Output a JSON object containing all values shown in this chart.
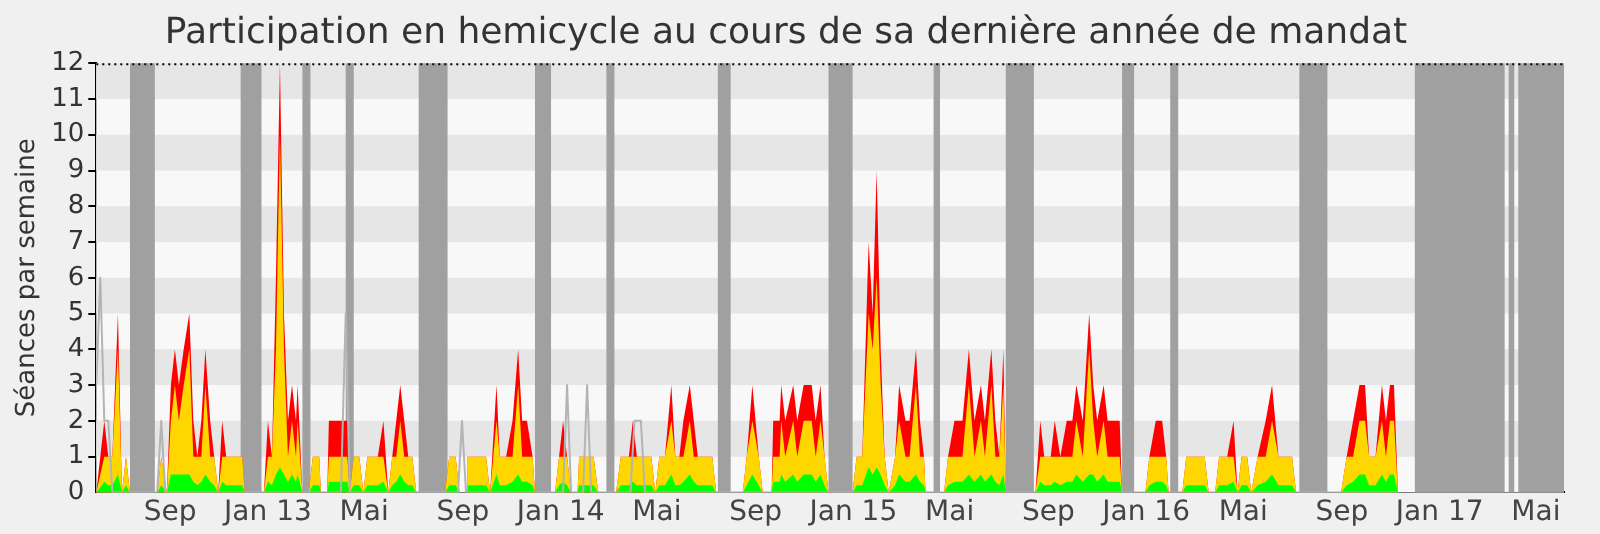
{
  "chart_data": {
    "type": "area",
    "title": "Participation en hemicycle au cours de sa dernière année de mandat",
    "ylabel": "Séances par semaine",
    "xlim": [
      "2012-06-15",
      "2017-06-19"
    ],
    "xticks": [
      {
        "value": "2012-09-15",
        "label": "Sep"
      },
      {
        "value": "2013-01-15",
        "label": "Jan 13"
      },
      {
        "value": "2013-05-15",
        "label": "Mai"
      },
      {
        "value": "2013-09-15",
        "label": "Sep"
      },
      {
        "value": "2014-01-15",
        "label": "Jan 14"
      },
      {
        "value": "2014-05-15",
        "label": "Mai"
      },
      {
        "value": "2014-09-15",
        "label": "Sep"
      },
      {
        "value": "2015-01-15",
        "label": "Jan 15"
      },
      {
        "value": "2015-05-15",
        "label": "Mai"
      },
      {
        "value": "2015-09-15",
        "label": "Sep"
      },
      {
        "value": "2016-01-15",
        "label": "Jan 16"
      },
      {
        "value": "2016-05-15",
        "label": "Mai"
      },
      {
        "value": "2016-09-15",
        "label": "Sep"
      },
      {
        "value": "2017-01-15",
        "label": "Jan 17"
      },
      {
        "value": "2017-05-15",
        "label": "Mai"
      }
    ],
    "ylim": [
      0,
      12
    ],
    "yticks": [
      0,
      1,
      2,
      3,
      4,
      5,
      6,
      7,
      8,
      9,
      10,
      11,
      12
    ],
    "legend": false,
    "marker": "none",
    "x": [
      "2012-06-15",
      "2012-06-25",
      "2012-06-30",
      "2012-07-05",
      "2012-07-12",
      "2012-07-17",
      "2012-07-22",
      "2012-07-27",
      "2012-08-30",
      "2012-09-04",
      "2012-09-11",
      "2012-09-16",
      "2012-09-21",
      "2012-09-26",
      "2012-10-02",
      "2012-10-09",
      "2012-10-14",
      "2012-10-19",
      "2012-10-24",
      "2012-10-29",
      "2012-11-04",
      "2012-11-09",
      "2012-11-14",
      "2012-11-19",
      "2012-11-24",
      "2012-11-29",
      "2012-12-07",
      "2012-12-14",
      "2012-12-17",
      "2013-01-10",
      "2013-01-15",
      "2013-01-20",
      "2013-01-25",
      "2013-01-30",
      "2013-02-04",
      "2013-02-09",
      "2013-02-14",
      "2013-02-19",
      "2013-02-21",
      "2013-02-27",
      "2013-03-07",
      "2013-03-12",
      "2013-03-20",
      "2013-03-22",
      "2013-03-30",
      "2013-04-01",
      "2013-04-24",
      "2013-04-27",
      "2013-05-02",
      "2013-05-09",
      "2013-05-14",
      "2013-05-19",
      "2013-05-27",
      "2013-06-01",
      "2013-06-08",
      "2013-06-14",
      "2013-06-19",
      "2013-06-24",
      "2013-06-29",
      "2013-07-04",
      "2013-07-09",
      "2013-07-14",
      "2013-07-19",
      "2013-08-24",
      "2013-08-29",
      "2013-09-06",
      "2013-09-11",
      "2013-09-19",
      "2013-09-21",
      "2013-10-14",
      "2013-10-19",
      "2013-10-27",
      "2013-10-31",
      "2013-11-08",
      "2013-11-16",
      "2013-11-23",
      "2013-11-28",
      "2013-12-04",
      "2013-12-11",
      "2013-12-14",
      "2014-01-08",
      "2014-01-13",
      "2014-01-18",
      "2014-01-23",
      "2014-01-28",
      "2014-02-05",
      "2014-02-07",
      "2014-02-25",
      "2014-03-03",
      "2014-03-25",
      "2014-03-31",
      "2014-04-05",
      "2014-04-10",
      "2014-04-15",
      "2014-04-20",
      "2014-04-25",
      "2014-05-08",
      "2014-05-13",
      "2014-05-18",
      "2014-05-25",
      "2014-06-02",
      "2014-06-07",
      "2014-06-12",
      "2014-06-17",
      "2014-06-25",
      "2014-06-30",
      "2014-07-05",
      "2014-07-23",
      "2014-07-28",
      "2014-08-30",
      "2014-09-04",
      "2014-09-11",
      "2014-09-19",
      "2014-09-24",
      "2014-10-05",
      "2014-10-07",
      "2014-10-15",
      "2014-10-17",
      "2014-10-22",
      "2014-11-01",
      "2014-11-06",
      "2014-11-14",
      "2014-11-24",
      "2014-11-29",
      "2014-12-05",
      "2014-12-10",
      "2014-12-15",
      "2015-01-14",
      "2015-01-19",
      "2015-01-26",
      "2015-02-03",
      "2015-02-08",
      "2015-02-13",
      "2015-02-18",
      "2015-02-23",
      "2015-02-28",
      "2015-03-08",
      "2015-03-13",
      "2015-03-21",
      "2015-03-26",
      "2015-04-03",
      "2015-04-08",
      "2015-04-13",
      "2015-04-15",
      "2015-05-08",
      "2015-05-13",
      "2015-05-21",
      "2015-05-31",
      "2015-06-08",
      "2015-06-15",
      "2015-06-23",
      "2015-06-28",
      "2015-07-06",
      "2015-07-11",
      "2015-07-16",
      "2015-07-21",
      "2015-07-24",
      "2015-08-30",
      "2015-09-05",
      "2015-09-10",
      "2015-09-18",
      "2015-09-23",
      "2015-09-30",
      "2015-10-08",
      "2015-10-15",
      "2015-10-20",
      "2015-10-28",
      "2015-11-05",
      "2015-11-10",
      "2015-11-15",
      "2015-11-23",
      "2015-11-28",
      "2015-12-13",
      "2015-12-16",
      "2016-01-14",
      "2016-01-19",
      "2016-01-27",
      "2016-02-04",
      "2016-02-09",
      "2016-02-12",
      "2016-02-29",
      "2016-03-05",
      "2016-03-28",
      "2016-04-02",
      "2016-04-10",
      "2016-04-15",
      "2016-04-25",
      "2016-05-03",
      "2016-05-08",
      "2016-05-13",
      "2016-05-20",
      "2016-05-25",
      "2016-06-02",
      "2016-06-12",
      "2016-06-20",
      "2016-06-28",
      "2016-07-03",
      "2016-07-15",
      "2016-07-20",
      "2016-09-14",
      "2016-09-21",
      "2016-09-29",
      "2016-10-07",
      "2016-10-14",
      "2016-10-19",
      "2016-10-27",
      "2016-11-04",
      "2016-11-09",
      "2016-11-14",
      "2016-11-19",
      "2016-11-24"
    ],
    "series": [
      {
        "type": "line",
        "color": "#b4b4b4",
        "x": [
          "2012-06-15",
          "2012-06-20",
          "2012-06-25",
          "2012-06-30",
          "2012-07-05",
          "2012-08-30",
          "2012-09-04",
          "2012-09-09",
          "2013-04-16",
          "2013-04-22",
          "2013-04-27",
          "2013-09-09",
          "2013-09-14",
          "2013-09-19",
          "2014-01-18",
          "2014-01-23",
          "2014-01-28",
          "2014-02-12",
          "2014-02-17",
          "2014-02-22",
          "2014-04-12",
          "2014-04-17",
          "2014-04-25",
          "2014-04-30",
          "2016-11-24"
        ],
        "values": [
          3,
          6,
          2,
          2,
          0,
          0,
          2,
          0,
          0,
          5,
          0,
          0,
          2,
          0,
          0,
          3,
          0,
          0,
          3,
          0,
          0,
          2,
          2,
          0,
          0
        ]
      },
      {
        "color": "#ff0000",
        "values": [
          0,
          2,
          1,
          1,
          5,
          0,
          1,
          0,
          0,
          1,
          0,
          3,
          4,
          3,
          4,
          5,
          2,
          1,
          2,
          4,
          2,
          1,
          0,
          2,
          1,
          1,
          1,
          1,
          0,
          0,
          2,
          1,
          6,
          12,
          5,
          2,
          3,
          2,
          3,
          0,
          0,
          1,
          1,
          0,
          0,
          2,
          2,
          0,
          1,
          1,
          0,
          1,
          1,
          1,
          2,
          0,
          1,
          2,
          3,
          2,
          1,
          1,
          0,
          0,
          1,
          1,
          0,
          0,
          1,
          1,
          0,
          3,
          1,
          1,
          2,
          4,
          2,
          2,
          1,
          0,
          0,
          1,
          2,
          1,
          0,
          0,
          1,
          1,
          0,
          0,
          1,
          1,
          1,
          2,
          1,
          1,
          1,
          0,
          1,
          1,
          3,
          1,
          1,
          2,
          3,
          2,
          1,
          1,
          0,
          0,
          1,
          3,
          1,
          0,
          0,
          2,
          2,
          3,
          2,
          3,
          2,
          3,
          3,
          2,
          3,
          1,
          0,
          0,
          1,
          1,
          7,
          5,
          9,
          4,
          1,
          0,
          1,
          3,
          2,
          2,
          4,
          2,
          1,
          0,
          0,
          1,
          2,
          2,
          4,
          2,
          3,
          2,
          4,
          2,
          1,
          4,
          0,
          0,
          2,
          1,
          1,
          2,
          1,
          2,
          2,
          3,
          2,
          5,
          3,
          2,
          3,
          2,
          2,
          0,
          0,
          1,
          2,
          2,
          1,
          0,
          0,
          1,
          1,
          0,
          0,
          1,
          1,
          2,
          0,
          1,
          1,
          0,
          1,
          2,
          3,
          1,
          1,
          1,
          0,
          0,
          1,
          2,
          3,
          3,
          1,
          1,
          3,
          2,
          3,
          3,
          0
        ]
      },
      {
        "color": "#ffd700",
        "values": [
          0,
          1,
          1,
          1,
          4,
          0,
          1,
          0,
          0,
          1,
          0,
          2,
          3,
          2,
          3,
          4,
          1,
          1,
          1,
          3,
          1,
          1,
          0,
          1,
          1,
          1,
          1,
          1,
          0,
          0,
          1,
          1,
          4,
          10,
          4,
          1,
          2,
          1,
          2,
          0,
          0,
          1,
          1,
          0,
          0,
          1,
          1,
          0,
          1,
          1,
          0,
          1,
          1,
          1,
          1,
          0,
          1,
          1,
          2,
          1,
          1,
          1,
          0,
          0,
          1,
          1,
          0,
          0,
          1,
          1,
          0,
          2,
          1,
          1,
          1,
          3,
          1,
          1,
          1,
          0,
          0,
          1,
          1,
          1,
          0,
          0,
          1,
          1,
          0,
          0,
          1,
          1,
          1,
          1,
          1,
          1,
          1,
          0,
          1,
          1,
          2,
          1,
          1,
          1,
          2,
          1,
          1,
          1,
          0,
          0,
          1,
          2,
          1,
          0,
          0,
          1,
          1,
          2,
          1,
          2,
          1,
          2,
          2,
          1,
          2,
          1,
          0,
          0,
          1,
          1,
          5,
          4,
          6,
          3,
          1,
          0,
          1,
          2,
          1,
          1,
          3,
          1,
          1,
          0,
          0,
          1,
          1,
          1,
          3,
          1,
          2,
          1,
          3,
          1,
          1,
          3,
          0,
          0,
          1,
          1,
          1,
          1,
          1,
          1,
          1,
          2,
          1,
          4,
          2,
          1,
          2,
          1,
          1,
          0,
          0,
          1,
          1,
          1,
          1,
          0,
          0,
          1,
          1,
          0,
          0,
          1,
          1,
          1,
          0,
          1,
          1,
          0,
          1,
          1,
          2,
          1,
          1,
          1,
          0,
          0,
          1,
          1,
          2,
          2,
          1,
          1,
          2,
          1,
          2,
          2,
          0
        ]
      },
      {
        "color": "#00ff00",
        "values": [
          0,
          0.3,
          0.2,
          0.2,
          0.5,
          0,
          0.2,
          0,
          0,
          0.2,
          0,
          0.5,
          0.5,
          0.5,
          0.5,
          0.5,
          0.3,
          0.2,
          0.3,
          0.5,
          0.3,
          0.2,
          0,
          0.3,
          0.2,
          0.2,
          0.2,
          0.2,
          0,
          0,
          0.3,
          0.2,
          0.5,
          0.7,
          0.5,
          0.3,
          0.5,
          0.3,
          0.5,
          0,
          0,
          0.2,
          0.2,
          0,
          0,
          0.3,
          0.3,
          0,
          0.2,
          0.2,
          0,
          0.2,
          0.2,
          0.2,
          0.3,
          0,
          0.2,
          0.3,
          0.5,
          0.3,
          0.2,
          0.2,
          0,
          0,
          0.2,
          0.2,
          0,
          0,
          0.2,
          0.2,
          0,
          0.5,
          0.2,
          0.2,
          0.3,
          0.5,
          0.3,
          0.3,
          0.2,
          0,
          0,
          0.2,
          0.3,
          0.2,
          0,
          0,
          0.2,
          0.2,
          0,
          0,
          0.2,
          0.2,
          0.2,
          0.3,
          0.2,
          0.2,
          0.2,
          0,
          0.2,
          0.2,
          0.5,
          0.2,
          0.2,
          0.3,
          0.5,
          0.3,
          0.2,
          0.2,
          0,
          0,
          0.2,
          0.5,
          0.2,
          0,
          0,
          0.3,
          0.3,
          0.5,
          0.3,
          0.5,
          0.3,
          0.5,
          0.5,
          0.3,
          0.5,
          0.2,
          0,
          0,
          0.2,
          0.2,
          0.7,
          0.5,
          0.7,
          0.5,
          0.2,
          0,
          0.2,
          0.5,
          0.3,
          0.3,
          0.5,
          0.3,
          0.2,
          0,
          0,
          0.2,
          0.3,
          0.3,
          0.5,
          0.3,
          0.5,
          0.3,
          0.5,
          0.3,
          0.2,
          0.5,
          0,
          0,
          0.3,
          0.2,
          0.2,
          0.3,
          0.2,
          0.3,
          0.3,
          0.5,
          0.3,
          0.5,
          0.5,
          0.3,
          0.5,
          0.3,
          0.3,
          0,
          0,
          0.2,
          0.3,
          0.3,
          0.2,
          0,
          0,
          0.2,
          0.2,
          0,
          0,
          0.2,
          0.2,
          0.3,
          0,
          0.2,
          0.2,
          0,
          0.2,
          0.3,
          0.5,
          0.2,
          0.2,
          0.2,
          0,
          0,
          0.2,
          0.3,
          0.5,
          0.5,
          0.2,
          0.2,
          0.5,
          0.3,
          0.5,
          0.5,
          0
        ]
      }
    ],
    "bands": [
      {
        "axis": "y",
        "from": 1,
        "to": 2,
        "color": "#e6e6e6"
      },
      {
        "axis": "y",
        "from": 3,
        "to": 4,
        "color": "#e6e6e6"
      },
      {
        "axis": "y",
        "from": 5,
        "to": 6,
        "color": "#e6e6e6"
      },
      {
        "axis": "y",
        "from": 7,
        "to": 8,
        "color": "#e6e6e6"
      },
      {
        "axis": "y",
        "from": 9,
        "to": 10,
        "color": "#e6e6e6"
      },
      {
        "axis": "y",
        "from": 11,
        "to": 12,
        "color": "#e6e6e6"
      },
      {
        "axis": "x",
        "from": "2012-07-27",
        "to": "2012-08-27",
        "color": "#a0a0a0"
      },
      {
        "axis": "x",
        "from": "2012-12-12",
        "to": "2013-01-07",
        "color": "#a0a0a0"
      },
      {
        "axis": "x",
        "from": "2013-02-27",
        "to": "2013-03-09",
        "color": "#a0a0a0"
      },
      {
        "axis": "x",
        "from": "2013-04-22",
        "to": "2013-05-02",
        "color": "#a0a0a0"
      },
      {
        "axis": "x",
        "from": "2013-07-22",
        "to": "2013-08-27",
        "color": "#a0a0a0"
      },
      {
        "axis": "x",
        "from": "2013-12-14",
        "to": "2014-01-03",
        "color": "#a0a0a0"
      },
      {
        "axis": "x",
        "from": "2014-03-13",
        "to": "2014-03-23",
        "color": "#a0a0a0"
      },
      {
        "axis": "x",
        "from": "2014-07-30",
        "to": "2014-08-15",
        "color": "#a0a0a0"
      },
      {
        "axis": "x",
        "from": "2014-12-15",
        "to": "2015-01-14",
        "color": "#a0a0a0"
      },
      {
        "axis": "x",
        "from": "2015-04-25",
        "to": "2015-05-03",
        "color": "#a0a0a0"
      },
      {
        "axis": "x",
        "from": "2015-07-24",
        "to": "2015-08-28",
        "color": "#a0a0a0"
      },
      {
        "axis": "x",
        "from": "2015-12-16",
        "to": "2015-12-31",
        "color": "#a0a0a0"
      },
      {
        "axis": "x",
        "from": "2016-02-14",
        "to": "2016-02-24",
        "color": "#a0a0a0"
      },
      {
        "axis": "x",
        "from": "2016-07-24",
        "to": "2016-08-28",
        "color": "#a0a0a0"
      },
      {
        "axis": "x",
        "from": "2016-12-15",
        "to": "2017-04-06",
        "color": "#a0a0a0"
      },
      {
        "axis": "x",
        "from": "2017-04-11",
        "to": "2017-04-18",
        "color": "#a0a0a0"
      },
      {
        "axis": "x",
        "from": "2017-04-23",
        "to": "2017-06-19",
        "color": "#a0a0a0"
      }
    ]
  }
}
